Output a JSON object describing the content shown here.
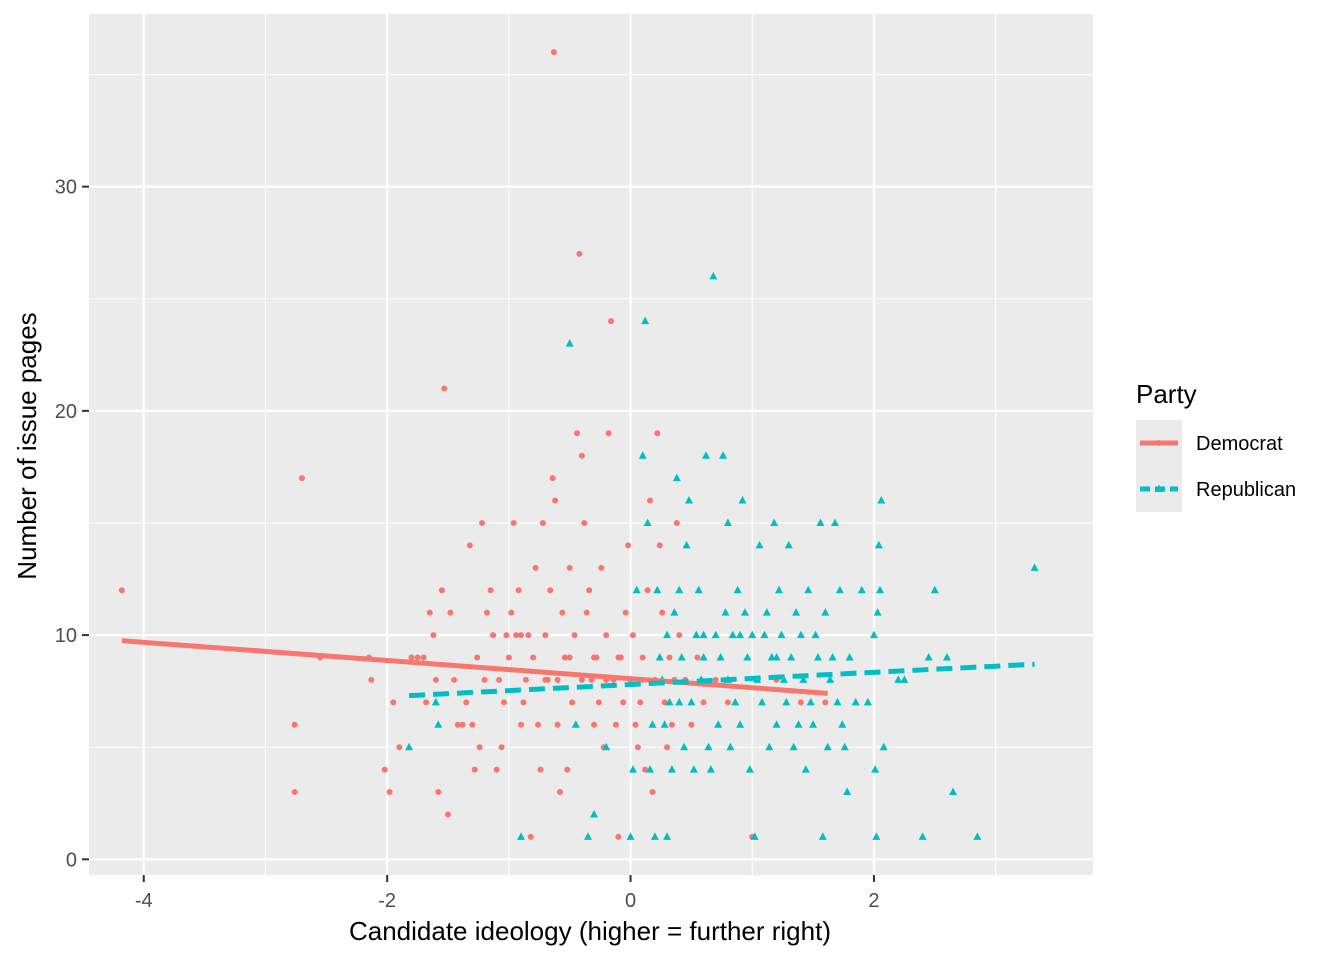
{
  "chart_data": {
    "type": "scatter",
    "title": "",
    "xlabel": "Candidate ideology (higher = further right)",
    "ylabel": "Number of issue pages",
    "xlim": [
      -4.45,
      3.8
    ],
    "ylim": [
      -0.7,
      37.7
    ],
    "xticks": [
      -4,
      -2,
      0,
      2
    ],
    "yticks": [
      0,
      10,
      20,
      30
    ],
    "grid": true,
    "legend": {
      "title": "Party",
      "position": "right"
    },
    "colors": {
      "Democrat": "#F8766D",
      "Republican": "#00BFC4",
      "panel": "#EBEBEB",
      "grid": "#FFFFFF"
    },
    "series": [
      {
        "name": "Democrat",
        "marker": "circle",
        "line_style": "solid",
        "trend": {
          "x": [
            -4.18,
            1.62
          ],
          "y": [
            9.75,
            7.4
          ]
        },
        "points": [
          [
            -4.18,
            12
          ],
          [
            -2.7,
            17
          ],
          [
            -2.76,
            6
          ],
          [
            -2.76,
            3
          ],
          [
            -2.55,
            9
          ],
          [
            -2.15,
            9
          ],
          [
            -2.13,
            8
          ],
          [
            -2.02,
            4
          ],
          [
            -1.98,
            3
          ],
          [
            -1.95,
            7
          ],
          [
            -1.9,
            5
          ],
          [
            -1.8,
            9
          ],
          [
            -1.75,
            9
          ],
          [
            -1.7,
            9
          ],
          [
            -1.68,
            7
          ],
          [
            -1.65,
            11
          ],
          [
            -1.62,
            10
          ],
          [
            -1.6,
            8
          ],
          [
            -1.58,
            3
          ],
          [
            -1.55,
            12
          ],
          [
            -1.53,
            21
          ],
          [
            -1.5,
            2
          ],
          [
            -1.48,
            11
          ],
          [
            -1.45,
            8
          ],
          [
            -1.42,
            6
          ],
          [
            -1.38,
            6
          ],
          [
            -1.35,
            7
          ],
          [
            -1.32,
            14
          ],
          [
            -1.3,
            6
          ],
          [
            -1.28,
            4
          ],
          [
            -1.26,
            9
          ],
          [
            -1.24,
            5
          ],
          [
            -1.22,
            15
          ],
          [
            -1.2,
            8
          ],
          [
            -1.18,
            11
          ],
          [
            -1.15,
            12
          ],
          [
            -1.13,
            10
          ],
          [
            -1.1,
            4
          ],
          [
            -1.08,
            8
          ],
          [
            -1.06,
            5
          ],
          [
            -1.04,
            7
          ],
          [
            -1.02,
            10
          ],
          [
            -1.0,
            9
          ],
          [
            -0.98,
            11
          ],
          [
            -0.96,
            15
          ],
          [
            -0.94,
            10
          ],
          [
            -0.92,
            12
          ],
          [
            -0.9,
            6
          ],
          [
            -0.88,
            7
          ],
          [
            -0.86,
            8
          ],
          [
            -0.84,
            10
          ],
          [
            -0.82,
            1
          ],
          [
            -0.8,
            9
          ],
          [
            -0.78,
            13
          ],
          [
            -0.76,
            6
          ],
          [
            -0.74,
            4
          ],
          [
            -0.72,
            15
          ],
          [
            -0.7,
            10
          ],
          [
            -0.68,
            8
          ],
          [
            -0.66,
            12
          ],
          [
            -0.64,
            17
          ],
          [
            -0.63,
            36
          ],
          [
            -0.62,
            16
          ],
          [
            -0.6,
            6
          ],
          [
            -0.58,
            3
          ],
          [
            -0.56,
            11
          ],
          [
            -0.54,
            9
          ],
          [
            -0.52,
            4
          ],
          [
            -0.5,
            13
          ],
          [
            -0.48,
            7
          ],
          [
            -0.46,
            10
          ],
          [
            -0.44,
            19
          ],
          [
            -0.42,
            27
          ],
          [
            -0.4,
            18
          ],
          [
            -0.38,
            15
          ],
          [
            -0.36,
            11
          ],
          [
            -0.34,
            12
          ],
          [
            -0.32,
            8
          ],
          [
            -0.3,
            6
          ],
          [
            -0.28,
            9
          ],
          [
            -0.26,
            7
          ],
          [
            -0.24,
            13
          ],
          [
            -0.22,
            5
          ],
          [
            -0.2,
            10
          ],
          [
            -0.18,
            19
          ],
          [
            -0.16,
            24
          ],
          [
            -0.14,
            8
          ],
          [
            -0.12,
            6
          ],
          [
            -0.1,
            1
          ],
          [
            -0.08,
            9
          ],
          [
            -0.06,
            7
          ],
          [
            -0.04,
            11
          ],
          [
            -0.02,
            14
          ],
          [
            0.0,
            8
          ],
          [
            0.02,
            10
          ],
          [
            0.04,
            6
          ],
          [
            0.06,
            5
          ],
          [
            0.08,
            7
          ],
          [
            0.1,
            9
          ],
          [
            0.12,
            4
          ],
          [
            0.14,
            12
          ],
          [
            0.16,
            16
          ],
          [
            0.18,
            3
          ],
          [
            0.2,
            8
          ],
          [
            0.22,
            19
          ],
          [
            0.24,
            14
          ],
          [
            0.26,
            11
          ],
          [
            0.28,
            7
          ],
          [
            0.3,
            5
          ],
          [
            0.32,
            9
          ],
          [
            0.34,
            6
          ],
          [
            0.36,
            8
          ],
          [
            0.38,
            15
          ],
          [
            0.4,
            10
          ],
          [
            0.45,
            8
          ],
          [
            0.5,
            6
          ],
          [
            0.55,
            9
          ],
          [
            0.6,
            7
          ],
          [
            0.7,
            8
          ],
          [
            0.8,
            7
          ],
          [
            1.0,
            1
          ],
          [
            1.2,
            8
          ],
          [
            1.4,
            7
          ],
          [
            1.6,
            7
          ],
          [
            -0.9,
            10
          ],
          [
            -0.7,
            8
          ],
          [
            -0.5,
            9
          ],
          [
            -0.3,
            9
          ],
          [
            -0.1,
            9
          ],
          [
            0.1,
            8
          ],
          [
            -0.6,
            8
          ],
          [
            -0.4,
            8
          ],
          [
            -0.2,
            8
          ]
        ]
      },
      {
        "name": "Republican",
        "marker": "triangle",
        "line_style": "dashed",
        "trend": {
          "x": [
            -1.82,
            3.32
          ],
          "y": [
            7.3,
            8.7
          ]
        },
        "points": [
          [
            -1.82,
            5
          ],
          [
            -1.6,
            7
          ],
          [
            -1.58,
            6
          ],
          [
            -0.9,
            1
          ],
          [
            -0.5,
            23
          ],
          [
            -0.45,
            6
          ],
          [
            -0.35,
            1
          ],
          [
            -0.3,
            2
          ],
          [
            -0.2,
            5
          ],
          [
            0.0,
            1
          ],
          [
            0.02,
            4
          ],
          [
            0.05,
            12
          ],
          [
            0.1,
            18
          ],
          [
            0.12,
            24
          ],
          [
            0.14,
            15
          ],
          [
            0.16,
            4
          ],
          [
            0.18,
            6
          ],
          [
            0.2,
            1
          ],
          [
            0.22,
            12
          ],
          [
            0.24,
            9
          ],
          [
            0.26,
            8
          ],
          [
            0.28,
            6
          ],
          [
            0.3,
            1
          ],
          [
            0.32,
            7
          ],
          [
            0.34,
            4
          ],
          [
            0.36,
            11
          ],
          [
            0.38,
            17
          ],
          [
            0.4,
            12
          ],
          [
            0.42,
            9
          ],
          [
            0.44,
            5
          ],
          [
            0.46,
            14
          ],
          [
            0.48,
            16
          ],
          [
            0.5,
            7
          ],
          [
            0.52,
            4
          ],
          [
            0.54,
            10
          ],
          [
            0.56,
            12
          ],
          [
            0.58,
            8
          ],
          [
            0.6,
            9
          ],
          [
            0.62,
            18
          ],
          [
            0.64,
            5
          ],
          [
            0.66,
            4
          ],
          [
            0.68,
            26
          ],
          [
            0.7,
            10
          ],
          [
            0.72,
            6
          ],
          [
            0.74,
            9
          ],
          [
            0.76,
            18
          ],
          [
            0.78,
            11
          ],
          [
            0.8,
            15
          ],
          [
            0.82,
            5
          ],
          [
            0.84,
            10
          ],
          [
            0.86,
            7
          ],
          [
            0.88,
            12
          ],
          [
            0.9,
            6
          ],
          [
            0.92,
            16
          ],
          [
            0.94,
            11
          ],
          [
            0.96,
            9
          ],
          [
            0.98,
            4
          ],
          [
            1.0,
            10
          ],
          [
            1.02,
            1
          ],
          [
            1.04,
            8
          ],
          [
            1.06,
            14
          ],
          [
            1.08,
            7
          ],
          [
            1.1,
            10
          ],
          [
            1.12,
            11
          ],
          [
            1.14,
            5
          ],
          [
            1.16,
            9
          ],
          [
            1.18,
            15
          ],
          [
            1.2,
            6
          ],
          [
            1.22,
            12
          ],
          [
            1.24,
            10
          ],
          [
            1.26,
            8
          ],
          [
            1.28,
            7
          ],
          [
            1.3,
            14
          ],
          [
            1.32,
            9
          ],
          [
            1.34,
            5
          ],
          [
            1.36,
            11
          ],
          [
            1.38,
            6
          ],
          [
            1.4,
            10
          ],
          [
            1.42,
            8
          ],
          [
            1.44,
            4
          ],
          [
            1.46,
            12
          ],
          [
            1.48,
            7
          ],
          [
            1.5,
            6
          ],
          [
            1.52,
            10
          ],
          [
            1.54,
            9
          ],
          [
            1.56,
            15
          ],
          [
            1.58,
            1
          ],
          [
            1.6,
            11
          ],
          [
            1.62,
            5
          ],
          [
            1.64,
            8
          ],
          [
            1.66,
            9
          ],
          [
            1.68,
            15
          ],
          [
            1.7,
            7
          ],
          [
            1.72,
            12
          ],
          [
            1.74,
            6
          ],
          [
            1.76,
            5
          ],
          [
            1.78,
            3
          ],
          [
            1.8,
            9
          ],
          [
            1.85,
            7
          ],
          [
            1.9,
            12
          ],
          [
            1.95,
            7
          ],
          [
            2.0,
            10
          ],
          [
            2.01,
            4
          ],
          [
            2.02,
            1
          ],
          [
            2.03,
            11
          ],
          [
            2.04,
            14
          ],
          [
            2.05,
            12
          ],
          [
            2.06,
            16
          ],
          [
            2.08,
            5
          ],
          [
            2.2,
            8
          ],
          [
            2.25,
            8
          ],
          [
            2.4,
            1
          ],
          [
            2.45,
            9
          ],
          [
            2.5,
            12
          ],
          [
            2.6,
            9
          ],
          [
            2.65,
            3
          ],
          [
            2.85,
            1
          ],
          [
            3.32,
            13
          ],
          [
            0.3,
            10
          ],
          [
            0.6,
            10
          ],
          [
            0.9,
            10
          ],
          [
            1.2,
            9
          ],
          [
            0.4,
            7
          ],
          [
            0.8,
            8
          ]
        ]
      }
    ]
  }
}
